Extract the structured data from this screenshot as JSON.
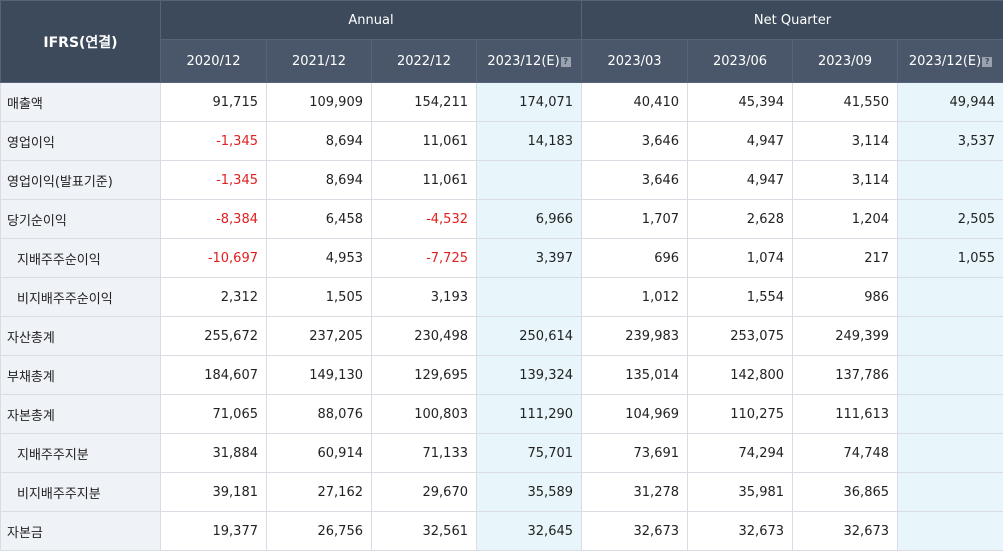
{
  "header": {
    "corner": "IFRS(연결)",
    "group_annual": "Annual",
    "group_quarter": "Net Quarter",
    "columns": [
      "2020/12",
      "2021/12",
      "2022/12",
      "2023/12(E)",
      "2023/03",
      "2023/06",
      "2023/09",
      "2023/12(E)"
    ]
  },
  "rows": [
    {
      "label": "매출액",
      "values": [
        "91,715",
        "109,909",
        "154,211",
        "174,071",
        "40,410",
        "45,394",
        "41,550",
        "49,944"
      ]
    },
    {
      "label": "영업이익",
      "values": [
        "-1,345",
        "8,694",
        "11,061",
        "14,183",
        "3,646",
        "4,947",
        "3,114",
        "3,537"
      ]
    },
    {
      "label": "영업이익(발표기준)",
      "values": [
        "-1,345",
        "8,694",
        "11,061",
        "",
        "3,646",
        "4,947",
        "3,114",
        ""
      ]
    },
    {
      "label": "당기순이익",
      "values": [
        "-8,384",
        "6,458",
        "-4,532",
        "6,966",
        "1,707",
        "2,628",
        "1,204",
        "2,505"
      ]
    },
    {
      "label": "지배주주순이익",
      "values": [
        "-10,697",
        "4,953",
        "-7,725",
        "3,397",
        "696",
        "1,074",
        "217",
        "1,055"
      ]
    },
    {
      "label": "비지배주주순이익",
      "values": [
        "2,312",
        "1,505",
        "3,193",
        "",
        "1,012",
        "1,554",
        "986",
        ""
      ]
    },
    {
      "label": "자산총계",
      "values": [
        "255,672",
        "237,205",
        "230,498",
        "250,614",
        "239,983",
        "253,075",
        "249,399",
        ""
      ]
    },
    {
      "label": "부채총계",
      "values": [
        "184,607",
        "149,130",
        "129,695",
        "139,324",
        "135,014",
        "142,800",
        "137,786",
        ""
      ]
    },
    {
      "label": "자본총계",
      "values": [
        "71,065",
        "88,076",
        "100,803",
        "111,290",
        "104,969",
        "110,275",
        "111,613",
        ""
      ]
    },
    {
      "label": "지배주주지분",
      "values": [
        "31,884",
        "60,914",
        "71,133",
        "75,701",
        "73,691",
        "74,294",
        "74,748",
        ""
      ]
    },
    {
      "label": "비지배주주지분",
      "values": [
        "39,181",
        "27,162",
        "29,670",
        "35,589",
        "31,278",
        "35,981",
        "36,865",
        ""
      ]
    },
    {
      "label": "자본금",
      "values": [
        "19,377",
        "26,756",
        "32,561",
        "32,645",
        "32,673",
        "32,673",
        "32,673",
        ""
      ]
    }
  ],
  "colors": {
    "header_bg": "#3d4a5c",
    "label_bg": "#eff2f7",
    "estimate_bg": "#e8f6fb",
    "negative": "#e01f1f"
  }
}
